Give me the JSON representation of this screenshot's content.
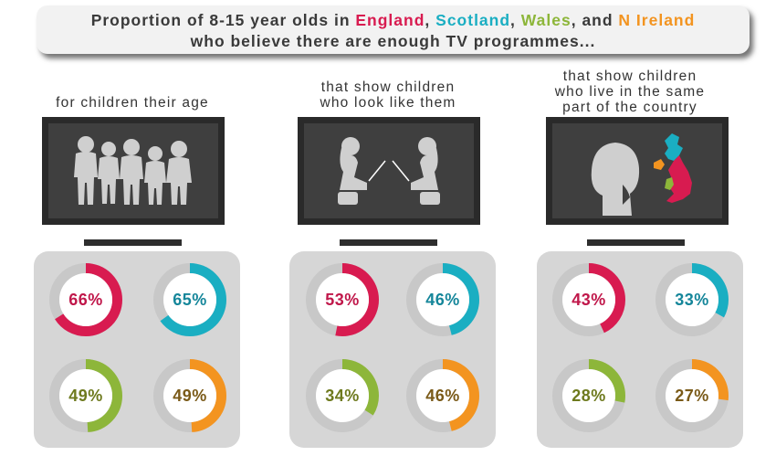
{
  "header": {
    "line1_prefix": "Proportion of 8-15 year olds in ",
    "england": "England",
    "sep1": ", ",
    "scotland": "Scotland",
    "sep2": ", ",
    "wales": "Wales",
    "sep3": ", and ",
    "nireland": "N Ireland",
    "line2": "who believe there are enough TV programmes..."
  },
  "colors": {
    "england": "#d81b50",
    "scotland": "#1aaec2",
    "wales": "#8db63a",
    "nireland": "#f39420",
    "ring_track": "#c8c8c8",
    "ring_inner": "#ffffff",
    "text_england": "#c0174a",
    "text_scotland": "#15869a",
    "text_wales": "#6e7a1e",
    "text_nireland": "#7a5a18"
  },
  "icons": {
    "tv1": "children-group-silhouette-icon",
    "tv2": "children-facing-silhouette-icon",
    "tv3": "child-and-uk-map-icon"
  },
  "chart_data": {
    "type": "donut",
    "title": "Proportion of 8-15 year olds in England, Scotland, Wales, and N Ireland who believe there are enough TV programmes...",
    "categories": [
      "for children their age",
      "that show children who look like them",
      "that show children who live in the same part of the country"
    ],
    "series": [
      {
        "name": "England",
        "values": [
          66,
          53,
          43
        ],
        "labels": [
          "66%",
          "53%",
          "43%"
        ]
      },
      {
        "name": "Scotland",
        "values": [
          65,
          46,
          33
        ],
        "labels": [
          "65%",
          "46%",
          "33%"
        ]
      },
      {
        "name": "Wales",
        "values": [
          49,
          34,
          28
        ],
        "labels": [
          "49%",
          "34%",
          "28%"
        ]
      },
      {
        "name": "N Ireland",
        "values": [
          49,
          46,
          27
        ],
        "labels": [
          "49%",
          "46%",
          "27%"
        ]
      }
    ],
    "ylim": [
      0,
      100
    ]
  },
  "columns": [
    {
      "label_lines": [
        "for children their age"
      ]
    },
    {
      "label_lines": [
        "that show children",
        "who look like them"
      ]
    },
    {
      "label_lines": [
        "that show children",
        "who live in the same",
        "part of the country"
      ]
    }
  ]
}
